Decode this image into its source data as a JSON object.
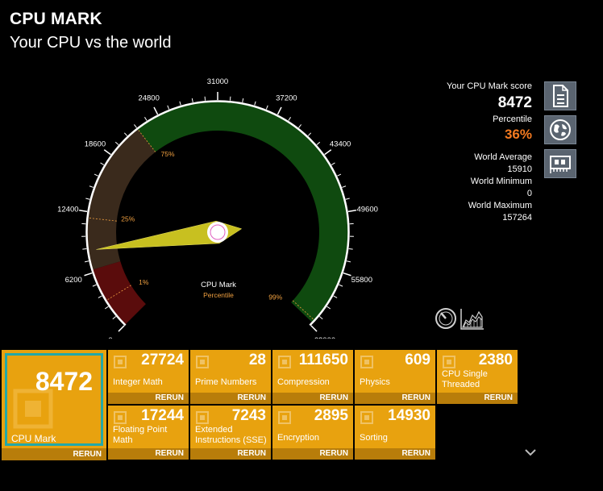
{
  "header": {
    "title": "CPU MARK",
    "subtitle": "Your CPU vs the world"
  },
  "gauge": {
    "ticks": [
      "0",
      "6200",
      "12400",
      "18600",
      "24800",
      "31000",
      "37200",
      "43400",
      "49600",
      "55800",
      "62000"
    ],
    "percentile_marks": [
      "1%",
      "25%",
      "75%",
      "99%"
    ],
    "center_label": "CPU Mark",
    "center_sublabel": "Percentile",
    "value": 8472,
    "max": 62000,
    "colors": {
      "low": "#5a0c0c",
      "mid": "#3a2a1c",
      "high": "#0f4a0f",
      "needle": "#c8c020",
      "accent": "#f0a040"
    }
  },
  "score": {
    "label": "Your CPU Mark score",
    "value": "8472",
    "percentile_label": "Percentile",
    "percentile": "36%"
  },
  "stats": {
    "avg_label": "World Average",
    "avg": "15910",
    "min_label": "World Minimum",
    "min": "0",
    "max_label": "World Maximum",
    "max": "157264"
  },
  "side_buttons": [
    "document-icon",
    "globe-icon",
    "hardware-card-icon"
  ],
  "tools": [
    "speedometer-icon",
    "chart-icon"
  ],
  "main_tile": {
    "value": "8472",
    "name": "CPU Mark",
    "rerun": "RERUN"
  },
  "tiles": [
    {
      "value": "27724",
      "name": "Integer Math",
      "rerun": "RERUN"
    },
    {
      "value": "28",
      "name": "Prime Numbers",
      "rerun": "RERUN"
    },
    {
      "value": "111650",
      "name": "Compression",
      "rerun": "RERUN"
    },
    {
      "value": "609",
      "name": "Physics",
      "rerun": "RERUN"
    },
    {
      "value": "2380",
      "name": "CPU Single Threaded",
      "rerun": "RERUN"
    },
    {
      "value": "17244",
      "name": "Floating Point Math",
      "rerun": "RERUN"
    },
    {
      "value": "7243",
      "name": "Extended Instructions (SSE)",
      "rerun": "RERUN"
    },
    {
      "value": "2895",
      "name": "Encryption",
      "rerun": "RERUN"
    },
    {
      "value": "14930",
      "name": "Sorting",
      "rerun": "RERUN"
    }
  ]
}
